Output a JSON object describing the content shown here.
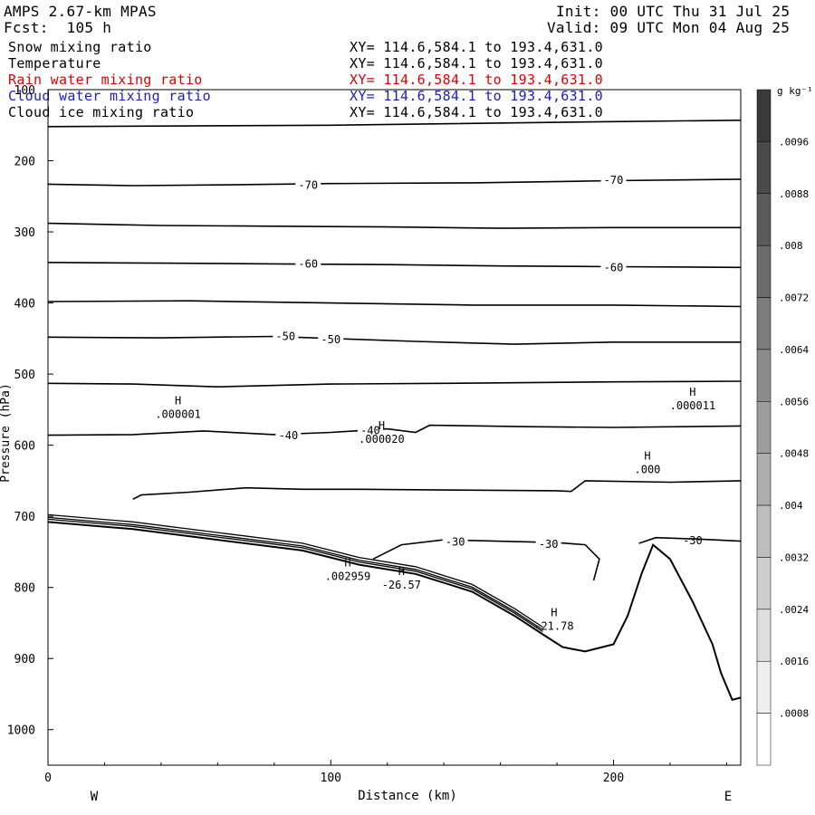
{
  "header": {
    "model": "AMPS 2.67-km MPAS",
    "forecast": "Fcst:  105 h",
    "init": "Init: 00 UTC Thu 31 Jul 25",
    "valid": "Valid: 09 UTC Mon 04 Aug 25"
  },
  "fields": [
    {
      "name": "Snow mixing ratio",
      "xy": "XY= 114.6,584.1 to 193.4,631.0",
      "color": "#000000"
    },
    {
      "name": "Temperature",
      "xy": "XY= 114.6,584.1 to 193.4,631.0",
      "color": "#000000"
    },
    {
      "name": "Rain water mixing ratio",
      "xy": "XY= 114.6,584.1 to 193.4,631.0",
      "color": "#e00000"
    },
    {
      "name": "Cloud water mixing ratio",
      "xy": "XY= 114.6,584.1 to 193.4,631.0",
      "color": "#2020c0"
    },
    {
      "name": "Cloud ice mixing ratio",
      "xy": "XY= 114.6,584.1 to 193.4,631.0",
      "color": "#000000"
    }
  ],
  "chart_data": {
    "type": "contour cross-section",
    "xlabel": "Distance (km)",
    "ylabel": "Pressure (hPa)",
    "xlim": [
      0,
      245
    ],
    "ylim": [
      1050,
      100
    ],
    "x_ticks": [
      0,
      100,
      200
    ],
    "y_ticks": [
      100,
      200,
      300,
      400,
      500,
      600,
      700,
      800,
      900,
      1000
    ],
    "left_end_label": "W",
    "right_end_label": "E",
    "temperature_contours": [
      {
        "value": -70,
        "points": [
          [
            0,
            152
          ],
          [
            100,
            150
          ],
          [
            200,
            145
          ],
          [
            245,
            143
          ]
        ]
      },
      {
        "value": -70,
        "label_at": [
          [
            92,
            233
          ],
          [
            200,
            226
          ]
        ],
        "points": [
          [
            0,
            233
          ],
          [
            30,
            235
          ],
          [
            60,
            234
          ],
          [
            100,
            232
          ],
          [
            150,
            231
          ],
          [
            200,
            228
          ],
          [
            245,
            226
          ]
        ]
      },
      {
        "points": [
          [
            0,
            288
          ],
          [
            40,
            291
          ],
          [
            80,
            292
          ],
          [
            120,
            293
          ],
          [
            160,
            295
          ],
          [
            200,
            294
          ],
          [
            245,
            294
          ]
        ]
      },
      {
        "value": -60,
        "label_at": [
          [
            92,
            344
          ],
          [
            200,
            349
          ]
        ],
        "points": [
          [
            0,
            343
          ],
          [
            40,
            344
          ],
          [
            80,
            345
          ],
          [
            120,
            346
          ],
          [
            160,
            348
          ],
          [
            200,
            349
          ],
          [
            245,
            350
          ]
        ]
      },
      {
        "points": [
          [
            0,
            398
          ],
          [
            50,
            397
          ],
          [
            100,
            400
          ],
          [
            150,
            403
          ],
          [
            200,
            403
          ],
          [
            245,
            405
          ]
        ]
      },
      {
        "value": -50,
        "label_at": [
          [
            84,
            446
          ],
          [
            100,
            450
          ]
        ],
        "points": [
          [
            0,
            448
          ],
          [
            40,
            449
          ],
          [
            80,
            447
          ],
          [
            100,
            450
          ],
          [
            130,
            454
          ],
          [
            165,
            458
          ],
          [
            200,
            455
          ],
          [
            245,
            455
          ]
        ]
      },
      {
        "points": [
          [
            0,
            513
          ],
          [
            30,
            514
          ],
          [
            60,
            518
          ],
          [
            100,
            514
          ],
          [
            140,
            513
          ],
          [
            200,
            511
          ],
          [
            245,
            510
          ]
        ]
      },
      {
        "value": -40,
        "label_at": [
          [
            85,
            585
          ],
          [
            114,
            578
          ]
        ],
        "points": [
          [
            0,
            586
          ],
          [
            30,
            585
          ],
          [
            55,
            580
          ],
          [
            80,
            585
          ],
          [
            100,
            582
          ],
          [
            120,
            577
          ],
          [
            130,
            582
          ],
          [
            135,
            572
          ],
          [
            170,
            574
          ],
          [
            200,
            575
          ],
          [
            245,
            573
          ]
        ]
      },
      {
        "points": [
          [
            30,
            676
          ],
          [
            33,
            670
          ],
          [
            50,
            666
          ],
          [
            70,
            660
          ],
          [
            90,
            662
          ],
          [
            110,
            662
          ],
          [
            140,
            663
          ],
          [
            180,
            664
          ],
          [
            185,
            665
          ],
          [
            190,
            650
          ],
          [
            220,
            652
          ],
          [
            245,
            650
          ]
        ]
      },
      {
        "value": -30,
        "label_at": [
          [
            144,
            735
          ],
          [
            177,
            738
          ],
          [
            228,
            733
          ]
        ],
        "points": [
          [
            115,
            760
          ],
          [
            125,
            740
          ],
          [
            140,
            733
          ],
          [
            180,
            737
          ],
          [
            190,
            740
          ],
          [
            195,
            760
          ],
          [
            193,
            790
          ]
        ]
      },
      {
        "points": [
          [
            209,
            738
          ],
          [
            215,
            730
          ],
          [
            230,
            732
          ],
          [
            245,
            735
          ]
        ]
      }
    ],
    "maxima_labels": [
      {
        "marker": "H",
        "value": ".000001",
        "x": 46,
        "y": 555
      },
      {
        "marker": "H",
        "value": ".000020",
        "x": 118,
        "y": 590
      },
      {
        "marker": "H",
        "value": ".000011",
        "x": 228,
        "y": 543
      },
      {
        "marker": "H",
        "value": ".000",
        "x": 212,
        "y": 633
      },
      {
        "marker": "H",
        "value": ".002959",
        "x": 106,
        "y": 783
      },
      {
        "marker": "H",
        "value": "-26.57",
        "x": 125,
        "y": 795
      },
      {
        "marker": "H",
        "value": "-21.78",
        "x": 179,
        "y": 853
      }
    ],
    "terrain": {
      "points": [
        [
          0,
          708
        ],
        [
          30,
          718
        ],
        [
          60,
          733
        ],
        [
          90,
          748
        ],
        [
          110,
          768
        ],
        [
          130,
          781
        ],
        [
          150,
          806
        ],
        [
          165,
          840
        ],
        [
          175,
          866
        ],
        [
          182,
          884
        ],
        [
          190,
          890
        ],
        [
          200,
          880
        ],
        [
          205,
          840
        ],
        [
          210,
          780
        ],
        [
          214,
          740
        ],
        [
          220,
          760
        ],
        [
          228,
          820
        ],
        [
          235,
          880
        ],
        [
          238,
          920
        ],
        [
          242,
          958
        ],
        [
          245,
          955
        ]
      ]
    },
    "colorbar": {
      "unit": "g kg⁻¹",
      "labels": [
        ".0096",
        ".0088",
        ".008",
        ".0072",
        ".0064",
        ".0056",
        ".0048",
        ".004",
        ".0032",
        ".0024",
        ".0016",
        ".0008"
      ],
      "max": 0.0104,
      "min": 0
    }
  }
}
